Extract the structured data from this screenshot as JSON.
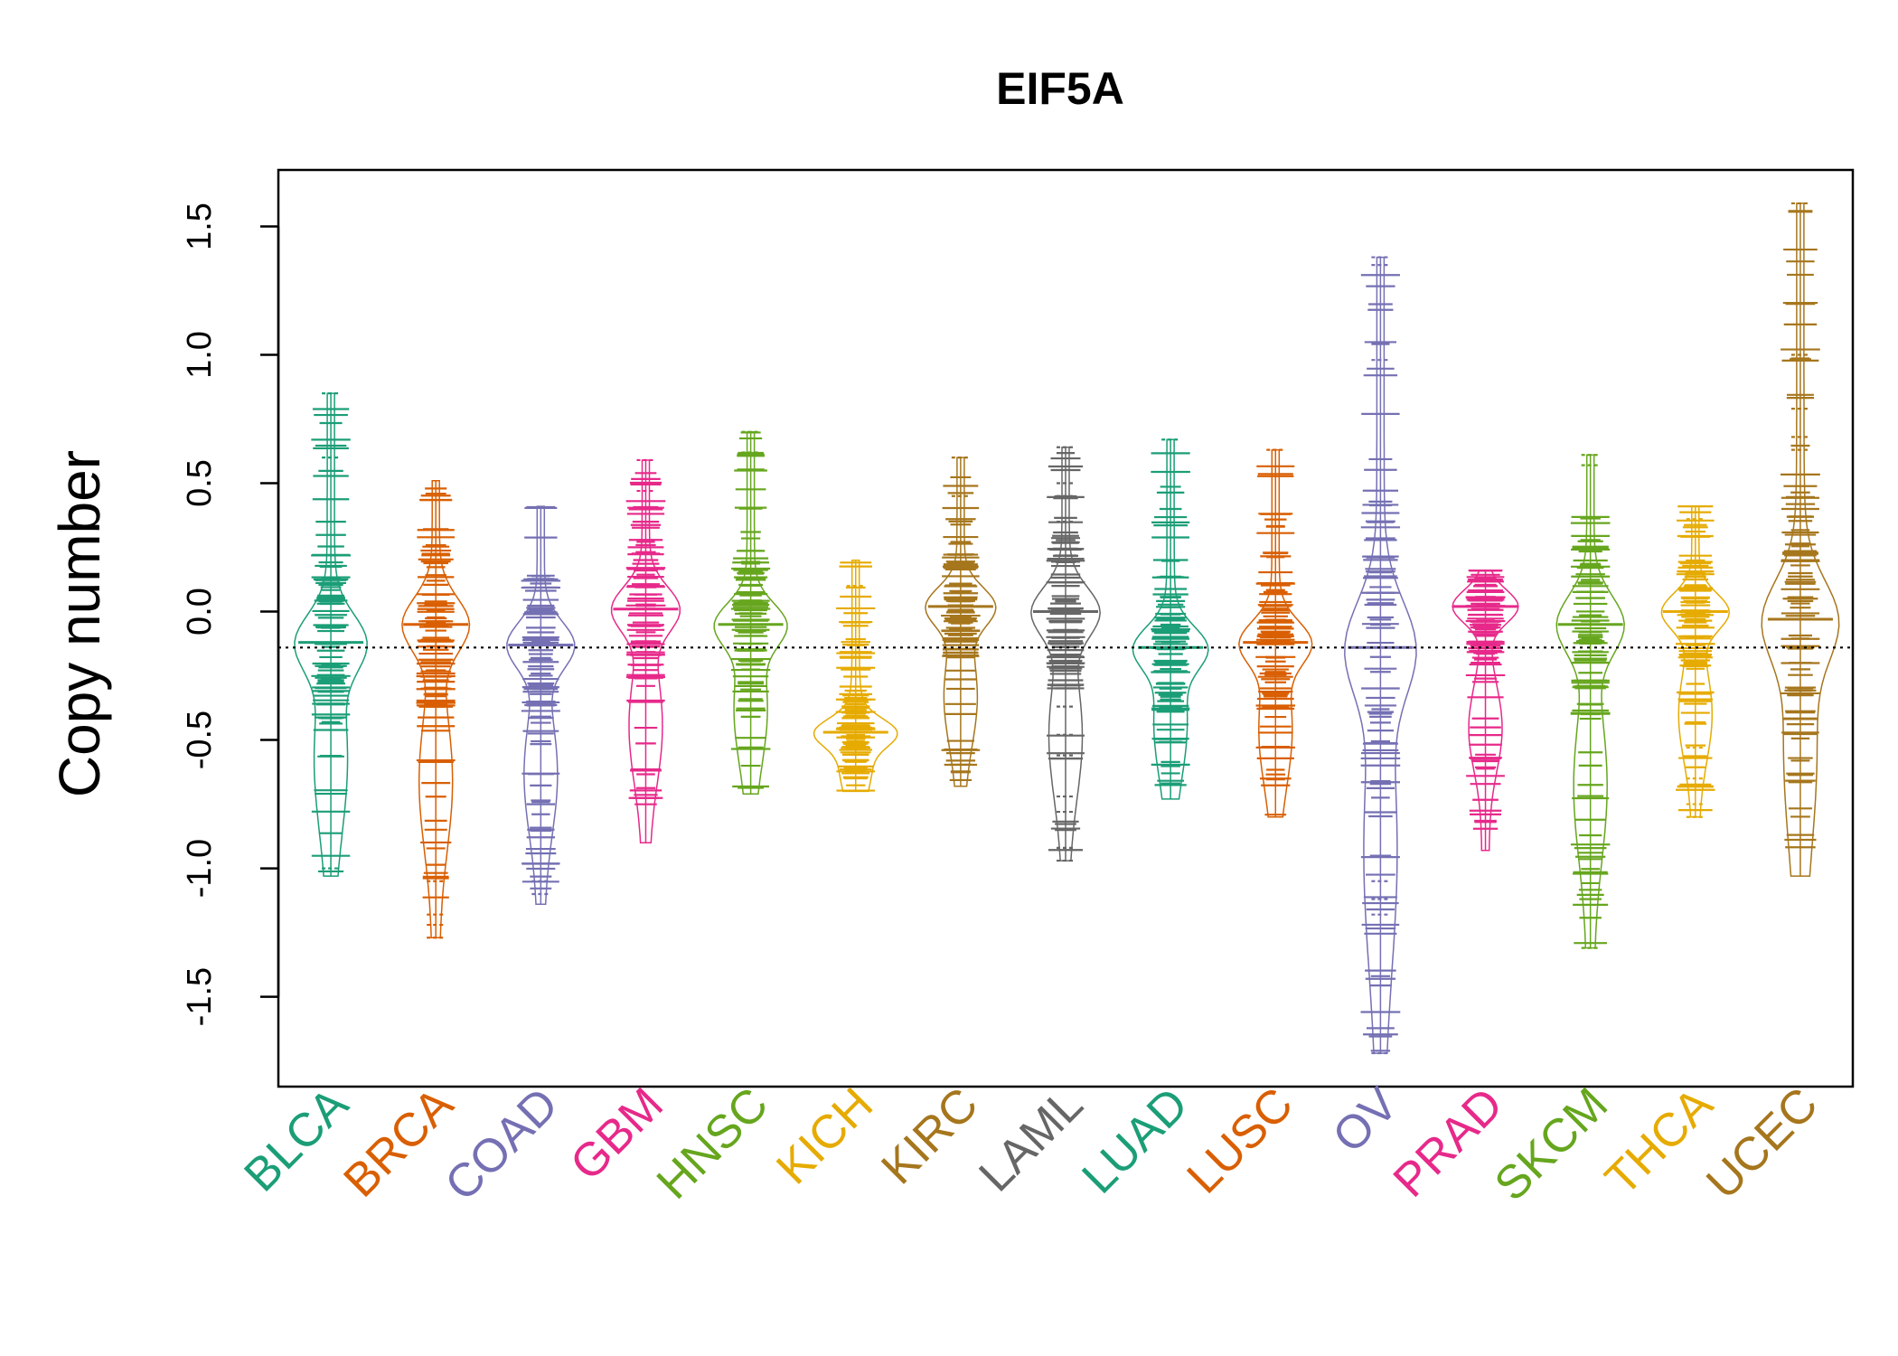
{
  "chart_data": {
    "type": "beanplot",
    "title": "EIF5A",
    "xlabel": "",
    "ylabel": "Copy number",
    "ylim": [
      -1.85,
      1.72
    ],
    "yticks": [
      -1.5,
      -1.0,
      -0.5,
      0.0,
      0.5,
      1.0,
      1.5
    ],
    "ytick_labels": [
      "-1.5",
      "-1.0",
      "-0.5",
      "0.0",
      "0.5",
      "1.0",
      "1.5"
    ],
    "reference_line": -0.14,
    "grid": false,
    "legend": "none",
    "categories": [
      "BLCA",
      "BRCA",
      "COAD",
      "GBM",
      "HNSC",
      "KICH",
      "KIRC",
      "LAML",
      "LUAD",
      "LUSC",
      "OV",
      "PRAD",
      "SKCM",
      "THCA",
      "UCEC"
    ],
    "colors": [
      "#1B9E77",
      "#D95F02",
      "#7570B3",
      "#E7298A",
      "#66A61E",
      "#E6AB02",
      "#A6761D",
      "#666666",
      "#1B9E77",
      "#D95F02",
      "#7570B3",
      "#E7298A",
      "#66A61E",
      "#E6AB02",
      "#A6761D"
    ],
    "series": [
      {
        "category": "BLCA",
        "min": -1.03,
        "max": 0.85,
        "median": -0.12,
        "outliers": [
          0.85,
          0.6,
          -1.0
        ]
      },
      {
        "category": "BRCA",
        "min": -1.27,
        "max": 0.51,
        "median": -0.05,
        "outliers": [
          -1.05,
          -1.18,
          -1.22,
          -1.27
        ]
      },
      {
        "category": "COAD",
        "min": -1.14,
        "max": 0.41,
        "median": -0.13,
        "outliers": [
          -1.05,
          -1.1
        ]
      },
      {
        "category": "GBM",
        "min": -0.9,
        "max": 0.59,
        "median": 0.01,
        "outliers": [
          0.59,
          0.47
        ]
      },
      {
        "category": "HNSC",
        "min": -0.71,
        "max": 0.7,
        "median": -0.05,
        "outliers": [
          0.7,
          0.62,
          0.55
        ]
      },
      {
        "category": "KICH",
        "min": -0.7,
        "max": 0.2,
        "median": -0.47,
        "outliers": [
          0.1
        ]
      },
      {
        "category": "KIRC",
        "min": -0.68,
        "max": 0.6,
        "median": 0.02,
        "outliers": [
          0.6,
          0.45
        ]
      },
      {
        "category": "LAML",
        "min": -0.97,
        "max": 0.64,
        "median": 0.0,
        "outliers": [
          0.64,
          0.5,
          0.45,
          0.35,
          -0.37,
          -0.48,
          -0.56,
          -0.72,
          -0.78,
          -0.92,
          -0.97
        ]
      },
      {
        "category": "LUAD",
        "min": -0.73,
        "max": 0.67,
        "median": -0.14,
        "outliers": [
          0.67
        ]
      },
      {
        "category": "LUSC",
        "min": -0.8,
        "max": 0.63,
        "median": -0.12,
        "outliers": [
          0.63
        ]
      },
      {
        "category": "OV",
        "min": -1.72,
        "max": 1.38,
        "median": -0.14,
        "outliers": [
          1.38,
          1.35,
          0.98,
          -1.05,
          -1.12,
          -1.18,
          -1.72
        ]
      },
      {
        "category": "PRAD",
        "min": -0.93,
        "max": 0.16,
        "median": 0.02,
        "outliers": []
      },
      {
        "category": "SKCM",
        "min": -1.31,
        "max": 0.61,
        "median": -0.05,
        "outliers": [
          0.61,
          0.57,
          -1.31
        ]
      },
      {
        "category": "THCA",
        "min": -0.8,
        "max": 0.41,
        "median": 0.0,
        "outliers": [
          0.41,
          0.36,
          -0.53,
          -0.65,
          -0.75,
          -0.8
        ]
      },
      {
        "category": "UCEC",
        "min": -1.03,
        "max": 1.59,
        "median": -0.03,
        "outliers": [
          1.59,
          1.0,
          0.79,
          0.68,
          0.63
        ]
      }
    ]
  }
}
